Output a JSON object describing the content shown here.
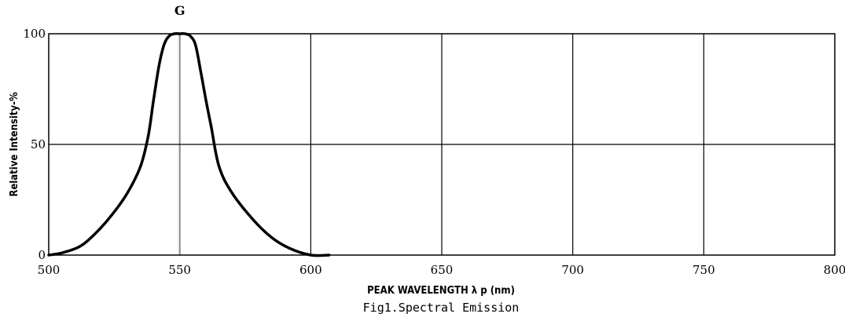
{
  "chart_data": {
    "type": "line",
    "title": "",
    "caption": "Fig1.Spectral Emission",
    "xlabel": "PEAK WAVELENGTH λ p (nm)",
    "ylabel": "Relative Intensity-%",
    "xlim": [
      500,
      800
    ],
    "ylim": [
      0,
      100
    ],
    "xticks": [
      500,
      550,
      600,
      650,
      700,
      750,
      800
    ],
    "xtick_labels": [
      "500",
      "550",
      "600",
      "650",
      "700",
      "750",
      "800"
    ],
    "yticks": [
      0,
      50,
      100
    ],
    "ytick_labels": [
      "0",
      "50",
      "100"
    ],
    "grid": true,
    "annotations": [
      {
        "text": "G",
        "x": 550
      }
    ],
    "series": [
      {
        "color": "#000000",
        "x": [
          500,
          505,
          512,
          518,
          524,
          530,
          535,
          538,
          540,
          542,
          544,
          546,
          548,
          550,
          552,
          554,
          556,
          558,
          560,
          562,
          565,
          570,
          578,
          585,
          592,
          600,
          607
        ],
        "y": [
          0,
          1,
          4,
          10,
          18,
          28,
          40,
          54,
          70,
          85,
          95,
          99,
          100,
          100,
          100,
          99,
          95,
          83,
          70,
          58,
          40,
          28,
          16,
          8,
          3,
          0,
          0
        ]
      }
    ]
  }
}
